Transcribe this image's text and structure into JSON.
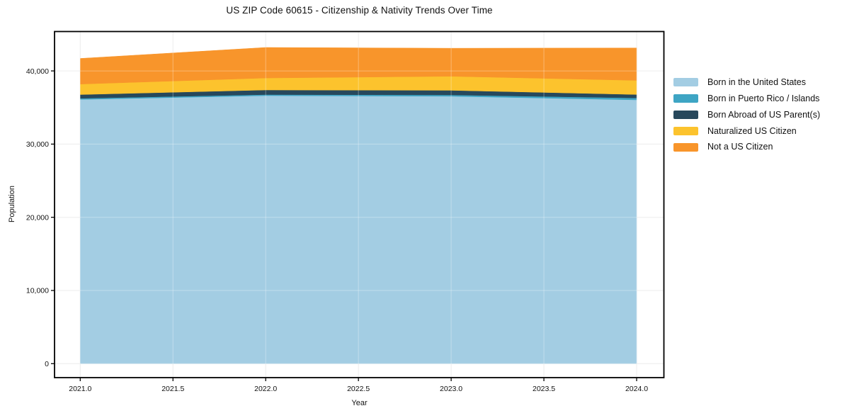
{
  "chart_data": {
    "type": "area",
    "stacked": true,
    "title": "US ZIP Code 60615 - Citizenship & Nativity Trends Over Time",
    "xlabel": "Year",
    "ylabel": "Population",
    "x": [
      2021,
      2022,
      2023,
      2024
    ],
    "series": [
      {
        "name": "Born in the United States",
        "color": "#a3cde3",
        "values": [
          36100,
          36620,
          36530,
          36040
        ]
      },
      {
        "name": "Born in Puerto Rico / Islands",
        "color": "#3ea5c4",
        "values": [
          150,
          150,
          190,
          260
        ]
      },
      {
        "name": "Born Abroad of US Parent(s)",
        "color": "#27485c",
        "values": [
          520,
          630,
          630,
          480
        ]
      },
      {
        "name": "Naturalized US Citizen",
        "color": "#fcc32d",
        "values": [
          1430,
          1630,
          1910,
          1920
        ]
      },
      {
        "name": "Not a US Citizen",
        "color": "#f8952b",
        "values": [
          3500,
          4170,
          3840,
          4440
        ]
      }
    ],
    "totals": [
      41700,
      43200,
      43100,
      43140
    ],
    "x_ticks": {
      "values": [
        2021.0,
        2021.5,
        2022.0,
        2022.5,
        2023.0,
        2023.5,
        2024.0
      ],
      "labels": [
        "2021.0",
        "2021.5",
        "2022.0",
        "2022.5",
        "2023.0",
        "2023.5",
        "2024.0"
      ]
    },
    "y_ticks": {
      "values": [
        0,
        10000,
        20000,
        30000,
        40000
      ],
      "labels": [
        "0",
        "10,000",
        "20,000",
        "30,000",
        "40,000"
      ]
    },
    "xlim": [
      2020.86,
      2024.15
    ],
    "ylim": [
      -1900,
      45350
    ],
    "grid": true,
    "legend_position": "right"
  },
  "colors": {
    "background": "#ffffff",
    "spine": "#000000",
    "grid": "#e3e3e3",
    "grid_overlay": "#ffffff",
    "text": "#111111"
  }
}
